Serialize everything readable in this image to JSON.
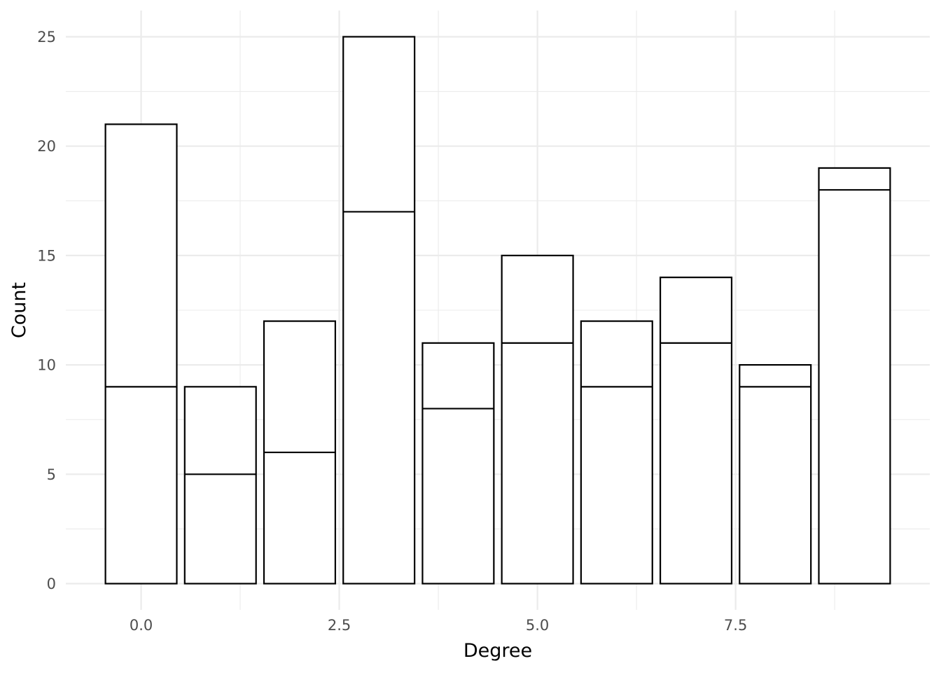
{
  "chart_data": {
    "type": "bar",
    "stacked": true,
    "xlabel": "Degree",
    "ylabel": "Count",
    "x": [
      0,
      1,
      2,
      3,
      4,
      5,
      6,
      7,
      8,
      9
    ],
    "series": [
      {
        "values": [
          9,
          5,
          6,
          17,
          8,
          11,
          9,
          11,
          9,
          18
        ]
      },
      {
        "values": [
          12,
          4,
          6,
          8,
          3,
          4,
          3,
          3,
          1,
          1
        ]
      }
    ],
    "totals": [
      21,
      9,
      12,
      25,
      11,
      15,
      12,
      14,
      10,
      19
    ],
    "xlim": [
      -0.95,
      9.95
    ],
    "ylim": [
      -1.2,
      26.2
    ],
    "x_ticks": [
      0,
      2.5,
      5,
      7.5
    ],
    "x_tick_labels": [
      "0.0",
      "2.5",
      "5.0",
      "7.5"
    ],
    "y_ticks": [
      0,
      5,
      10,
      15,
      20,
      25
    ],
    "y_tick_labels": [
      "0",
      "5",
      "10",
      "15",
      "20",
      "25"
    ],
    "x_minor_ticks": [
      1.25,
      3.75,
      6.25,
      8.75
    ],
    "y_minor_ticks": [
      2.5,
      7.5,
      12.5,
      17.5,
      22.5
    ],
    "bar_width": 0.9,
    "grid": true,
    "legend": "none",
    "colors": {
      "bar_fill": "#ffffff",
      "bar_outline": "#000000",
      "grid": "#ebebeb",
      "tick_text": "#4d4d4d",
      "axis_title": "#000000"
    }
  }
}
